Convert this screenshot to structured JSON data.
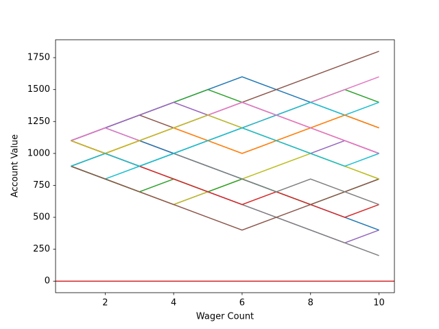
{
  "chart_data": {
    "type": "line",
    "x_label": "Wager Count",
    "y_label": "Account Value",
    "x": [
      1,
      2,
      3,
      4,
      5,
      6,
      7,
      8,
      9,
      10
    ],
    "xlim": [
      0.55,
      10.45
    ],
    "xticks": [
      2,
      4,
      6,
      8,
      10
    ],
    "ylim": [
      -90,
      1890
    ],
    "yticks": [
      0,
      250,
      500,
      750,
      1000,
      1250,
      1500,
      1750
    ],
    "reference_line": {
      "y": 0,
      "color": "#d62728"
    },
    "series": [
      {
        "color": "#1f77b4",
        "values": [
          1100,
          1200,
          1300,
          1400,
          1500,
          1600,
          1500,
          1400,
          1300,
          1200
        ]
      },
      {
        "color": "#ff7f0e",
        "values": [
          1100,
          1000,
          1100,
          1200,
          1100,
          1000,
          1100,
          1200,
          1300,
          1200
        ]
      },
      {
        "color": "#2ca02c",
        "values": [
          1100,
          1200,
          1300,
          1400,
          1500,
          1400,
          1300,
          1400,
          1500,
          1400
        ]
      },
      {
        "color": "#d62728",
        "values": [
          1100,
          1000,
          1100,
          1000,
          1100,
          1200,
          1300,
          1200,
          1100,
          1000
        ]
      },
      {
        "color": "#9467bd",
        "values": [
          900,
          800,
          700,
          600,
          700,
          600,
          500,
          400,
          300,
          400
        ]
      },
      {
        "color": "#8c564b",
        "values": [
          1100,
          1200,
          1300,
          1200,
          1300,
          1400,
          1500,
          1600,
          1700,
          1800
        ]
      },
      {
        "color": "#e377c2",
        "values": [
          1100,
          1200,
          1300,
          1400,
          1300,
          1400,
          1300,
          1400,
          1500,
          1600
        ]
      },
      {
        "color": "#7f7f7f",
        "values": [
          900,
          1000,
          900,
          800,
          700,
          600,
          500,
          400,
          300,
          200
        ]
      },
      {
        "color": "#bcbd22",
        "values": [
          900,
          800,
          700,
          600,
          700,
          800,
          900,
          1000,
          900,
          800
        ]
      },
      {
        "color": "#17becf",
        "values": [
          900,
          800,
          900,
          1000,
          1100,
          1200,
          1300,
          1400,
          1300,
          1400
        ]
      },
      {
        "color": "#1f77b4",
        "values": [
          1100,
          1200,
          1100,
          1000,
          900,
          800,
          700,
          600,
          500,
          400
        ]
      },
      {
        "color": "#ff7f0e",
        "values": [
          900,
          1000,
          1100,
          1200,
          1100,
          1000,
          1100,
          1200,
          1300,
          1200
        ]
      },
      {
        "color": "#2ca02c",
        "values": [
          900,
          800,
          700,
          800,
          700,
          800,
          700,
          600,
          700,
          800
        ]
      },
      {
        "color": "#d62728",
        "values": [
          1100,
          1000,
          900,
          800,
          700,
          600,
          700,
          600,
          500,
          600
        ]
      },
      {
        "color": "#9467bd",
        "values": [
          1100,
          1200,
          1300,
          1400,
          1300,
          1200,
          1100,
          1000,
          1100,
          1000
        ]
      },
      {
        "color": "#8c564b",
        "values": [
          900,
          800,
          700,
          600,
          500,
          400,
          500,
          600,
          700,
          800
        ]
      },
      {
        "color": "#e377c2",
        "values": [
          1100,
          1200,
          1100,
          1200,
          1300,
          1400,
          1300,
          1200,
          1100,
          1000
        ]
      },
      {
        "color": "#7f7f7f",
        "values": [
          900,
          1000,
          900,
          1000,
          900,
          800,
          700,
          800,
          700,
          600
        ]
      },
      {
        "color": "#bcbd22",
        "values": [
          1100,
          1000,
          1100,
          1200,
          1300,
          1200,
          1100,
          1000,
          900,
          800
        ]
      },
      {
        "color": "#17becf",
        "values": [
          900,
          1000,
          900,
          1000,
          1100,
          1200,
          1100,
          1000,
          900,
          1000
        ]
      }
    ]
  }
}
